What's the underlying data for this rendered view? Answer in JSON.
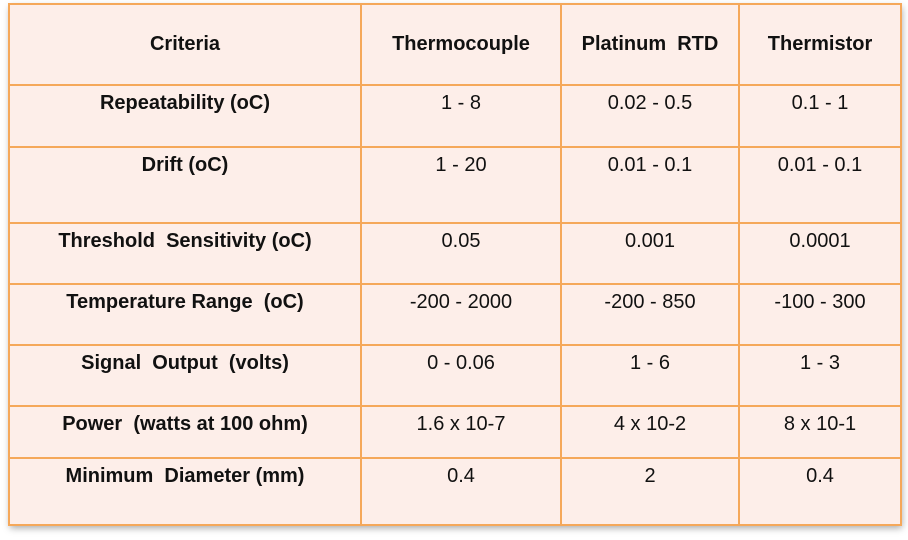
{
  "headers": [
    "Criteria",
    "Thermocouple",
    "Platinum  RTD",
    "Thermistor"
  ],
  "rows": [
    [
      "Repeatability (oC)",
      "1 - 8",
      "0.02 - 0.5",
      "0.1 - 1"
    ],
    [
      "Drift (oC)",
      "1 - 20",
      "0.01 - 0.1",
      "0.01 - 0.1"
    ],
    [
      "Threshold  Sensitivity (oC)",
      "0.05",
      "0.001",
      "0.0001"
    ],
    [
      "Temperature Range  (oC)",
      "-200 - 2000",
      "-200 - 850",
      "-100 - 300"
    ],
    [
      "Signal  Output  (volts)",
      "0 - 0.06",
      "1 - 6",
      "1 - 3"
    ],
    [
      "Power  (watts at 100 ohm)",
      "1.6 x 10-7",
      "4 x 10-2",
      "8 x 10-1"
    ],
    [
      "Minimum  Diameter (mm)",
      "0.4",
      "2",
      "0.4"
    ]
  ],
  "colors": {
    "cell_background": "#fdeee9",
    "border": "#f5a85a",
    "text": "#111111"
  }
}
